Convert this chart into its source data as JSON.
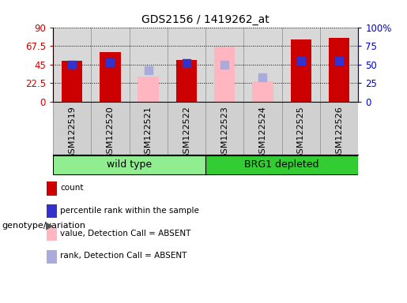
{
  "title": "GDS2156 / 1419262_at",
  "samples": [
    "GSM122519",
    "GSM122520",
    "GSM122521",
    "GSM122522",
    "GSM122523",
    "GSM122524",
    "GSM122525",
    "GSM122526"
  ],
  "red_bars": [
    49,
    60,
    null,
    50,
    null,
    null,
    75,
    77
  ],
  "blue_squares_pct": [
    50,
    53,
    null,
    52,
    null,
    null,
    55,
    55
  ],
  "pink_bars": [
    null,
    null,
    30,
    null,
    67,
    25,
    null,
    null
  ],
  "lightblue_squares_pct": [
    null,
    null,
    42,
    null,
    50,
    33,
    null,
    null
  ],
  "ylim_left": [
    0,
    90
  ],
  "ylim_right": [
    0,
    100
  ],
  "yticks_left": [
    0,
    22.5,
    45,
    67.5,
    90
  ],
  "ytick_labels_left": [
    "0",
    "22.5",
    "45",
    "67.5",
    "90"
  ],
  "yticks_right": [
    0,
    25,
    50,
    75,
    100
  ],
  "ytick_labels_right": [
    "0",
    "25",
    "50",
    "75",
    "100%"
  ],
  "bar_width": 0.55,
  "square_size": 55,
  "colors": {
    "red_bar": "#cc0000",
    "blue_square": "#3333cc",
    "pink_bar": "#ffb6c1",
    "lightblue_square": "#aaaadd",
    "group_wt": "#90ee90",
    "group_brg1": "#33cc33",
    "plot_bg": "#d8d8d8",
    "xtick_bg": "#d0d0d0",
    "left_axis": "#cc0000",
    "right_axis": "#0000cc"
  },
  "group_label": "genotype/variation",
  "wt_label": "wild type",
  "brg1_label": "BRG1 depleted",
  "legend_items": [
    {
      "color": "#cc0000",
      "label": "count"
    },
    {
      "color": "#3333cc",
      "label": "percentile rank within the sample"
    },
    {
      "color": "#ffb6c1",
      "label": "value, Detection Call = ABSENT"
    },
    {
      "color": "#aaaadd",
      "label": "rank, Detection Call = ABSENT"
    }
  ]
}
